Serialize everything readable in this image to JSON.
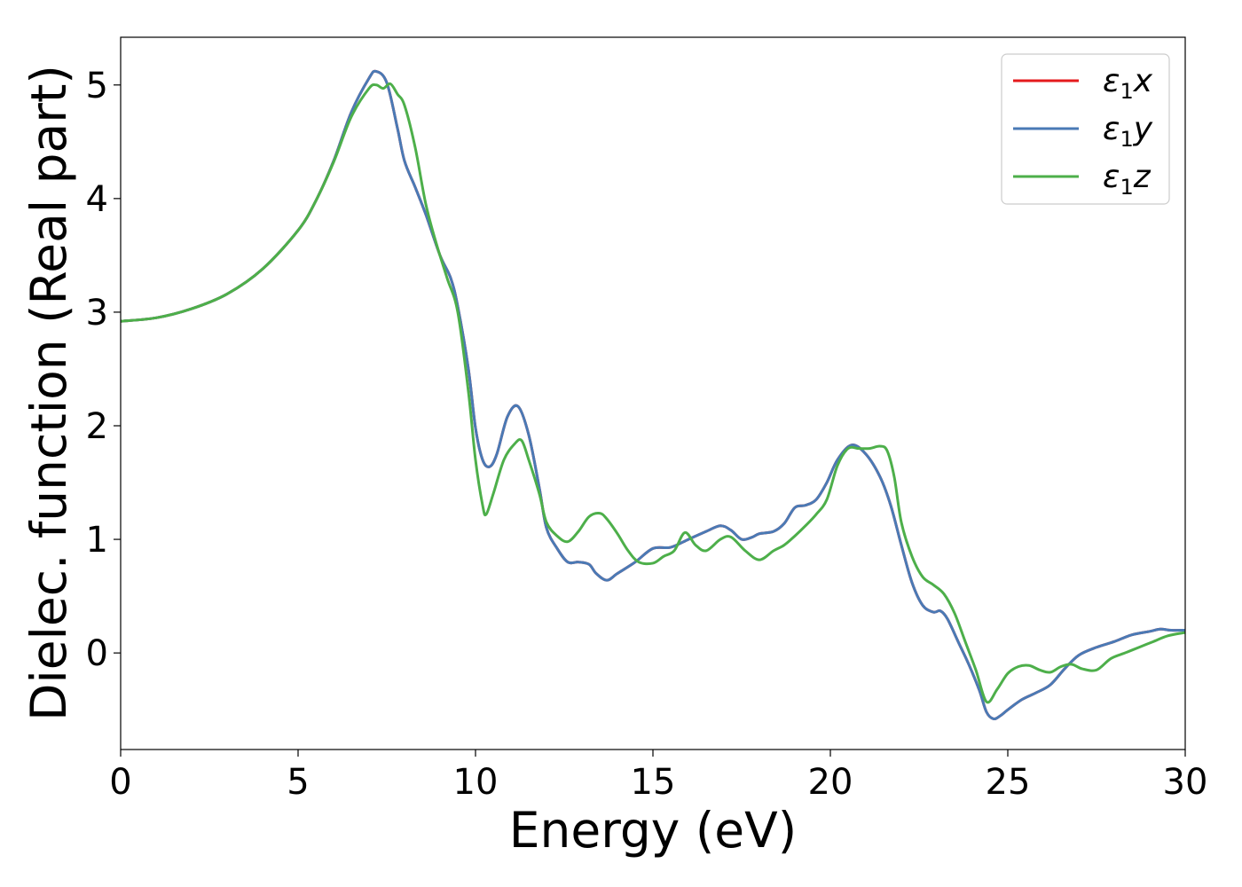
{
  "chart_data": {
    "type": "line",
    "title": "",
    "xlabel": "Energy (eV)",
    "ylabel": "Dielec. function (Real part)",
    "xlim": [
      0,
      30
    ],
    "ylim": [
      -0.85,
      5.42
    ],
    "xticks": [
      0,
      5,
      10,
      15,
      20,
      25,
      30
    ],
    "xtick_labels": [
      "0",
      "5",
      "10",
      "15",
      "20",
      "25",
      "30"
    ],
    "yticks": [
      0,
      1,
      2,
      3,
      4,
      5
    ],
    "ytick_labels": [
      "0",
      "1",
      "2",
      "3",
      "4",
      "5"
    ],
    "grid": false,
    "legend_position": "top-right",
    "series": [
      {
        "name": "ε1x",
        "legend_base": "ε",
        "legend_sub": "1",
        "legend_suffix": "x",
        "color": "#e41a1c",
        "x": [
          0,
          1,
          2,
          3,
          4,
          5,
          5.5,
          6,
          6.5,
          7,
          7.2,
          7.5,
          7.8,
          8,
          8.3,
          8.6,
          9,
          9.3,
          9.5,
          9.8,
          10,
          10.2,
          10.4,
          10.6,
          10.9,
          11.2,
          11.5,
          11.8,
          12,
          12.3,
          12.6,
          12.9,
          13.2,
          13.4,
          13.7,
          14,
          14.5,
          15,
          15.5,
          16,
          16.5,
          16.9,
          17.2,
          17.5,
          17.8,
          18,
          18.4,
          18.7,
          19,
          19.3,
          19.6,
          19.9,
          20.2,
          20.6,
          21,
          21.4,
          21.7,
          22,
          22.3,
          22.6,
          22.9,
          23.1,
          23.3,
          23.6,
          23.9,
          24.2,
          24.4,
          24.6,
          24.8,
          25,
          25.4,
          25.8,
          26.2,
          26.6,
          27,
          27.5,
          28,
          28.5,
          29,
          29.3,
          29.6,
          30
        ],
        "values": [
          2.92,
          2.95,
          3.03,
          3.16,
          3.38,
          3.72,
          3.98,
          4.33,
          4.76,
          5.06,
          5.12,
          5.02,
          4.62,
          4.33,
          4.1,
          3.86,
          3.5,
          3.3,
          3.05,
          2.5,
          1.98,
          1.7,
          1.64,
          1.75,
          2.08,
          2.17,
          1.92,
          1.45,
          1.1,
          0.92,
          0.8,
          0.8,
          0.78,
          0.7,
          0.64,
          0.7,
          0.8,
          0.92,
          0.93,
          1.0,
          1.07,
          1.12,
          1.08,
          1.0,
          1.02,
          1.05,
          1.07,
          1.14,
          1.28,
          1.3,
          1.35,
          1.5,
          1.7,
          1.83,
          1.75,
          1.55,
          1.3,
          0.95,
          0.62,
          0.42,
          0.36,
          0.37,
          0.3,
          0.1,
          -0.1,
          -0.33,
          -0.52,
          -0.58,
          -0.55,
          -0.5,
          -0.41,
          -0.35,
          -0.28,
          -0.14,
          -0.02,
          0.05,
          0.1,
          0.16,
          0.19,
          0.21,
          0.2,
          0.2
        ]
      },
      {
        "name": "ε1y",
        "legend_base": "ε",
        "legend_sub": "1",
        "legend_suffix": "y",
        "color": "#4a7ab5",
        "x": [
          0,
          1,
          2,
          3,
          4,
          5,
          5.5,
          6,
          6.5,
          7,
          7.2,
          7.5,
          7.8,
          8,
          8.3,
          8.6,
          9,
          9.3,
          9.5,
          9.8,
          10,
          10.2,
          10.4,
          10.6,
          10.9,
          11.2,
          11.5,
          11.8,
          12,
          12.3,
          12.6,
          12.9,
          13.2,
          13.4,
          13.7,
          14,
          14.5,
          15,
          15.5,
          16,
          16.5,
          16.9,
          17.2,
          17.5,
          17.8,
          18,
          18.4,
          18.7,
          19,
          19.3,
          19.6,
          19.9,
          20.2,
          20.6,
          21,
          21.4,
          21.7,
          22,
          22.3,
          22.6,
          22.9,
          23.1,
          23.3,
          23.6,
          23.9,
          24.2,
          24.4,
          24.6,
          24.8,
          25,
          25.4,
          25.8,
          26.2,
          26.6,
          27,
          27.5,
          28,
          28.5,
          29,
          29.3,
          29.6,
          30
        ],
        "values": [
          2.92,
          2.95,
          3.03,
          3.16,
          3.38,
          3.72,
          3.98,
          4.33,
          4.76,
          5.06,
          5.12,
          5.02,
          4.62,
          4.33,
          4.1,
          3.86,
          3.5,
          3.3,
          3.05,
          2.5,
          1.98,
          1.7,
          1.64,
          1.75,
          2.08,
          2.17,
          1.92,
          1.45,
          1.1,
          0.92,
          0.8,
          0.8,
          0.78,
          0.7,
          0.64,
          0.7,
          0.8,
          0.92,
          0.93,
          1.0,
          1.07,
          1.12,
          1.08,
          1.0,
          1.02,
          1.05,
          1.07,
          1.14,
          1.28,
          1.3,
          1.35,
          1.5,
          1.7,
          1.83,
          1.75,
          1.55,
          1.3,
          0.95,
          0.62,
          0.42,
          0.36,
          0.37,
          0.3,
          0.1,
          -0.1,
          -0.33,
          -0.52,
          -0.58,
          -0.55,
          -0.5,
          -0.41,
          -0.35,
          -0.28,
          -0.14,
          -0.02,
          0.05,
          0.1,
          0.16,
          0.19,
          0.21,
          0.2,
          0.2
        ]
      },
      {
        "name": "ε1z",
        "legend_base": "ε",
        "legend_sub": "1",
        "legend_suffix": "z",
        "color": "#4daf4a",
        "x": [
          0,
          1,
          2,
          3,
          4,
          5,
          5.5,
          6,
          6.5,
          7,
          7.2,
          7.4,
          7.6,
          7.8,
          8,
          8.3,
          8.6,
          8.9,
          9.2,
          9.5,
          9.8,
          10,
          10.2,
          10.3,
          10.5,
          10.8,
          11.1,
          11.3,
          11.5,
          11.8,
          12,
          12.3,
          12.6,
          12.9,
          13.2,
          13.5,
          13.7,
          14,
          14.3,
          14.6,
          15,
          15.3,
          15.6,
          15.9,
          16.2,
          16.5,
          16.9,
          17.2,
          17.6,
          18,
          18.4,
          18.7,
          19,
          19.3,
          19.6,
          19.9,
          20.2,
          20.5,
          20.8,
          21.1,
          21.4,
          21.6,
          21.8,
          22,
          22.3,
          22.6,
          22.9,
          23.2,
          23.5,
          23.8,
          24.1,
          24.4,
          24.7,
          25,
          25.3,
          25.6,
          25.9,
          26.2,
          26.5,
          26.8,
          27.1,
          27.5,
          27.9,
          28.3,
          28.7,
          29.1,
          29.5,
          30
        ],
        "values": [
          2.92,
          2.95,
          3.03,
          3.16,
          3.38,
          3.72,
          3.98,
          4.32,
          4.72,
          4.97,
          5.0,
          4.97,
          5.01,
          4.92,
          4.82,
          4.45,
          3.95,
          3.6,
          3.3,
          3.0,
          2.3,
          1.7,
          1.3,
          1.22,
          1.4,
          1.7,
          1.84,
          1.87,
          1.7,
          1.4,
          1.15,
          1.03,
          0.98,
          1.07,
          1.2,
          1.23,
          1.18,
          1.05,
          0.9,
          0.8,
          0.79,
          0.85,
          0.9,
          1.06,
          0.95,
          0.9,
          1.0,
          1.02,
          0.9,
          0.82,
          0.9,
          0.95,
          1.03,
          1.12,
          1.22,
          1.35,
          1.65,
          1.8,
          1.8,
          1.8,
          1.82,
          1.78,
          1.55,
          1.15,
          0.85,
          0.67,
          0.6,
          0.52,
          0.35,
          0.1,
          -0.15,
          -0.43,
          -0.32,
          -0.18,
          -0.12,
          -0.11,
          -0.15,
          -0.17,
          -0.12,
          -0.1,
          -0.14,
          -0.15,
          -0.05,
          0.0,
          0.05,
          0.1,
          0.15,
          0.18
        ]
      }
    ]
  }
}
